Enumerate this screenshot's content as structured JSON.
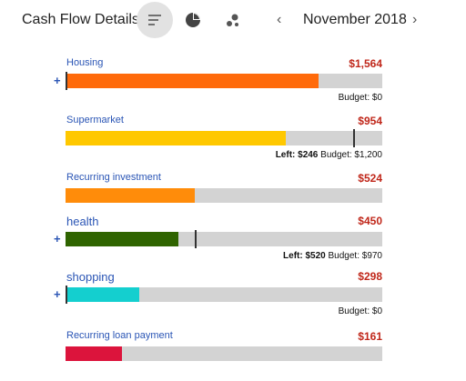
{
  "header": {
    "title": "Cash Flow Details",
    "month": "November 2018"
  },
  "items": [
    {
      "name": "Housing",
      "amount": "$1,564",
      "budget": "Budget: $0"
    },
    {
      "name": "Supermarket",
      "amount": "$954",
      "left": "Left: $246",
      "budget": "Budget: $1,200"
    },
    {
      "name": "Recurring investment",
      "amount": "$524"
    },
    {
      "name": "health",
      "amount": "$450",
      "left": "Left: $520",
      "budget": "Budget: $970"
    },
    {
      "name": "shopping",
      "amount": "$298",
      "budget": "Budget: $0"
    },
    {
      "name": "Recurring loan payment",
      "amount": "$161"
    }
  ]
}
